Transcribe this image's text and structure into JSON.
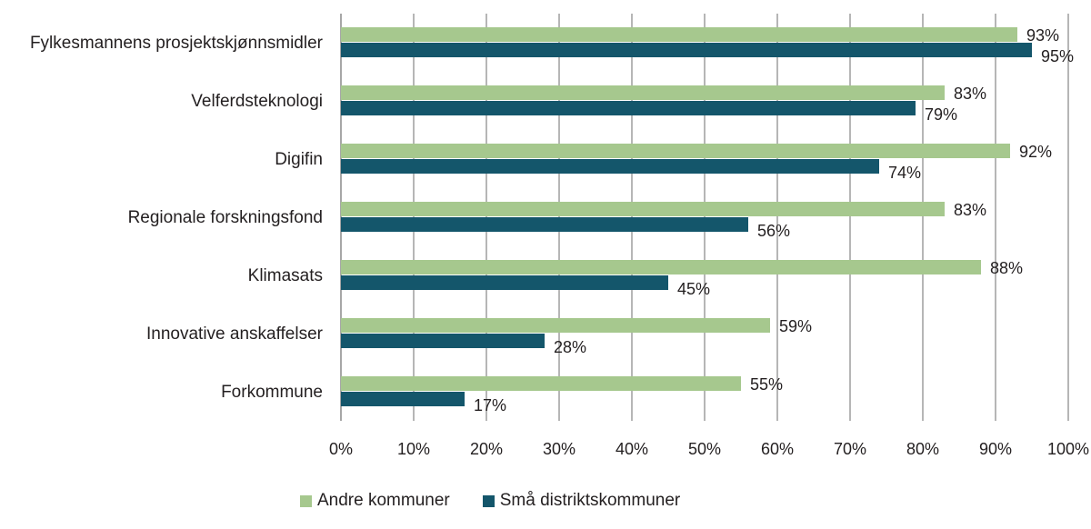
{
  "chart_data": {
    "type": "bar",
    "orientation": "horizontal",
    "title": "",
    "xlabel": "",
    "ylabel": "",
    "xlim": [
      0,
      100
    ],
    "grid": true,
    "categories": [
      "Fylkesmannens prosjektskjønnsmidler",
      "Velferdsteknologi",
      "Digifin",
      "Regionale forskningsfond",
      "Klimasats",
      "Innovative anskaffelser",
      "Forkommune"
    ],
    "series": [
      {
        "name": "Andre kommuner",
        "color": "#a6c88e",
        "values": [
          93,
          83,
          92,
          83,
          88,
          59,
          55
        ],
        "labels": [
          "93%",
          "83%",
          "92%",
          "83%",
          "88%",
          "59%",
          "55%"
        ]
      },
      {
        "name": "Små distriktskommuner",
        "color": "#14566b",
        "values": [
          95,
          79,
          74,
          56,
          45,
          28,
          17
        ],
        "labels": [
          "95%",
          "79%",
          "74%",
          "56%",
          "45%",
          "28%",
          "17%"
        ]
      }
    ],
    "x_ticks": [
      "0%",
      "10%",
      "20%",
      "30%",
      "40%",
      "50%",
      "60%",
      "70%",
      "80%",
      "90%",
      "100%"
    ],
    "legend_position": "bottom"
  }
}
